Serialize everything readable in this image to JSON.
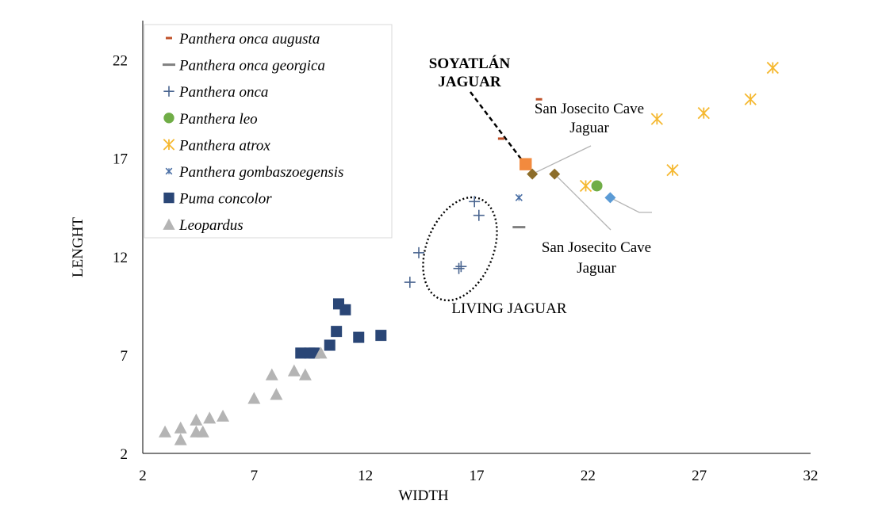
{
  "chart_data": {
    "type": "scatter",
    "xlabel": "WIDTH",
    "ylabel": "LENGHT",
    "xlim": [
      2,
      32
    ],
    "ylim": [
      2,
      24
    ],
    "xticks": [
      2,
      7,
      12,
      17,
      22,
      27,
      32
    ],
    "yticks": [
      2,
      7,
      12,
      17,
      22
    ],
    "grid": false,
    "legend_position": "top-left",
    "series": [
      {
        "name": "Panthera onca augusta",
        "marker": "dash",
        "color": "#c0522a",
        "points": [
          [
            18.1,
            18.0
          ],
          [
            19.8,
            20.0
          ]
        ]
      },
      {
        "name": "Panthera onca georgica",
        "marker": "dash",
        "color": "#808080",
        "points": [
          [
            18.9,
            13.5
          ]
        ]
      },
      {
        "name": "Panthera onca",
        "marker": "plus",
        "color": "#4a6590",
        "points": [
          [
            16.9,
            14.8
          ],
          [
            17.1,
            14.1
          ],
          [
            14.4,
            12.2
          ],
          [
            16.3,
            11.5
          ],
          [
            16.2,
            11.4
          ],
          [
            14.0,
            10.7
          ]
        ]
      },
      {
        "name": "Panthera leo",
        "marker": "circle",
        "color": "#70ad47",
        "points": [
          [
            22.4,
            15.6
          ]
        ]
      },
      {
        "name": "Panthera atrox",
        "marker": "asterisk",
        "color": "#f5b830",
        "points": [
          [
            30.3,
            21.6
          ],
          [
            29.3,
            20.0
          ],
          [
            27.2,
            19.3
          ],
          [
            25.1,
            19.0
          ],
          [
            25.8,
            16.4
          ],
          [
            21.9,
            15.6
          ]
        ]
      },
      {
        "name": "Panthera gombaszoegensis",
        "marker": "x",
        "color": "#4a6fa5",
        "points": [
          [
            18.9,
            15.0
          ]
        ]
      },
      {
        "name": "Puma concolor",
        "marker": "square",
        "color": "#2a4676",
        "points": [
          [
            10.8,
            9.6
          ],
          [
            11.1,
            9.3
          ],
          [
            10.7,
            8.2
          ],
          [
            12.7,
            8.0
          ],
          [
            11.7,
            7.9
          ],
          [
            10.4,
            7.5
          ],
          [
            9.1,
            7.1
          ],
          [
            9.5,
            7.1
          ],
          [
            9.7,
            7.1
          ]
        ]
      },
      {
        "name": "Leopardus",
        "marker": "triangle",
        "color": "#b4b4b4",
        "points": [
          [
            10.0,
            7.1
          ],
          [
            8.8,
            6.2
          ],
          [
            7.8,
            6.0
          ],
          [
            9.3,
            6.0
          ],
          [
            8.0,
            5.0
          ],
          [
            7.0,
            4.8
          ],
          [
            5.6,
            3.9
          ],
          [
            5.0,
            3.8
          ],
          [
            4.4,
            3.7
          ],
          [
            3.7,
            3.3
          ],
          [
            4.4,
            3.1
          ],
          [
            4.7,
            3.1
          ],
          [
            3.0,
            3.1
          ],
          [
            3.7,
            2.7
          ]
        ]
      }
    ],
    "highlighted_points": [
      {
        "label": "SOYATLÁN JAGUAR",
        "marker": "square",
        "color": "#f28a3e",
        "x": 19.2,
        "y": 16.7
      },
      {
        "label": "San Josecito Cave Jaguar",
        "marker": "diamond",
        "color": "#8c6d2a",
        "x": 19.5,
        "y": 16.2
      },
      {
        "label": "San Josecito Cave Jaguar",
        "marker": "diamond",
        "color": "#8c6d2a",
        "x": 20.5,
        "y": 16.2
      },
      {
        "label": "",
        "marker": "diamond",
        "color": "#5b9bd5",
        "x": 23.0,
        "y": 15.0
      }
    ],
    "annotations": {
      "soyatlan": [
        "SOYATLÁN",
        "JAGUAR"
      ],
      "san_josecito_top": [
        "San Josecito Cave",
        "Jaguar"
      ],
      "san_josecito_bottom": [
        "San Josecito Cave",
        "Jaguar"
      ],
      "living_jaguar": "LIVING JAGUAR"
    }
  }
}
